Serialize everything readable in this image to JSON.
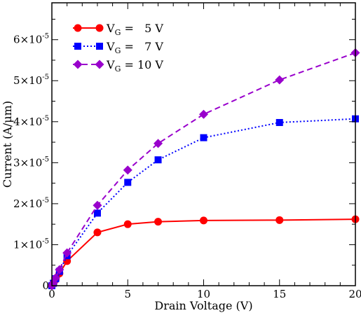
{
  "chart_data": {
    "type": "line",
    "xlabel": "Drain Voltage (V)",
    "ylabel": "Current (A/μm)",
    "xlim": [
      0,
      20
    ],
    "ylim": [
      0,
      6.9e-05
    ],
    "x_ticks": [
      {
        "value": 0,
        "label": "0"
      },
      {
        "value": 5,
        "label": "5"
      },
      {
        "value": 10,
        "label": "10"
      },
      {
        "value": 15,
        "label": "15"
      },
      {
        "value": 20,
        "label": "20"
      }
    ],
    "y_ticks": [
      {
        "value": 0,
        "mantissa": "0",
        "exponent": ""
      },
      {
        "value": 1e-05,
        "mantissa": "1×10",
        "exponent": "-5"
      },
      {
        "value": 2e-05,
        "mantissa": "2×10",
        "exponent": "-5"
      },
      {
        "value": 3e-05,
        "mantissa": "3×10",
        "exponent": "-5"
      },
      {
        "value": 4e-05,
        "mantissa": "4×10",
        "exponent": "-5"
      },
      {
        "value": 5e-05,
        "mantissa": "5×10",
        "exponent": "-5"
      },
      {
        "value": 6e-05,
        "mantissa": "6×10",
        "exponent": "-5"
      }
    ],
    "grid": false,
    "legend_position": "top-left",
    "series": [
      {
        "legend": {
          "prefix": "V",
          "sub": "G",
          "suffix": " =   5 V"
        },
        "color": "#ff0000",
        "marker": "circle",
        "dash": "solid",
        "x": [
          0,
          0.1,
          0.25,
          0.5,
          1,
          3,
          5,
          7,
          10,
          15,
          20
        ],
        "y": [
          0,
          5e-07,
          1.5e-06,
          3e-06,
          6e-06,
          1.3e-05,
          1.5e-05,
          1.56e-05,
          1.59e-05,
          1.6e-05,
          1.62e-05
        ]
      },
      {
        "legend": {
          "prefix": "V",
          "sub": "G",
          "suffix": " =   7 V"
        },
        "color": "#0000ff",
        "marker": "square",
        "dash": "dotted",
        "x": [
          0,
          0.1,
          0.25,
          0.5,
          1,
          3,
          5,
          7,
          10,
          15,
          20
        ],
        "y": [
          0,
          6e-07,
          1.7e-06,
          3.5e-06,
          7.3e-06,
          1.77e-05,
          2.52e-05,
          3.07e-05,
          3.61e-05,
          3.98e-05,
          4.07e-05
        ]
      },
      {
        "legend": {
          "prefix": "V",
          "sub": "G",
          "suffix": " = 10 V"
        },
        "color": "#9900cc",
        "marker": "diamond",
        "dash": "dashed",
        "x": [
          0,
          0.1,
          0.25,
          0.5,
          1,
          3,
          5,
          7,
          10,
          15,
          20
        ],
        "y": [
          0,
          7e-07,
          1.9e-06,
          3.9e-06,
          8e-06,
          1.96e-05,
          2.82e-05,
          3.47e-05,
          4.18e-05,
          5.02e-05,
          5.68e-05
        ]
      }
    ]
  }
}
